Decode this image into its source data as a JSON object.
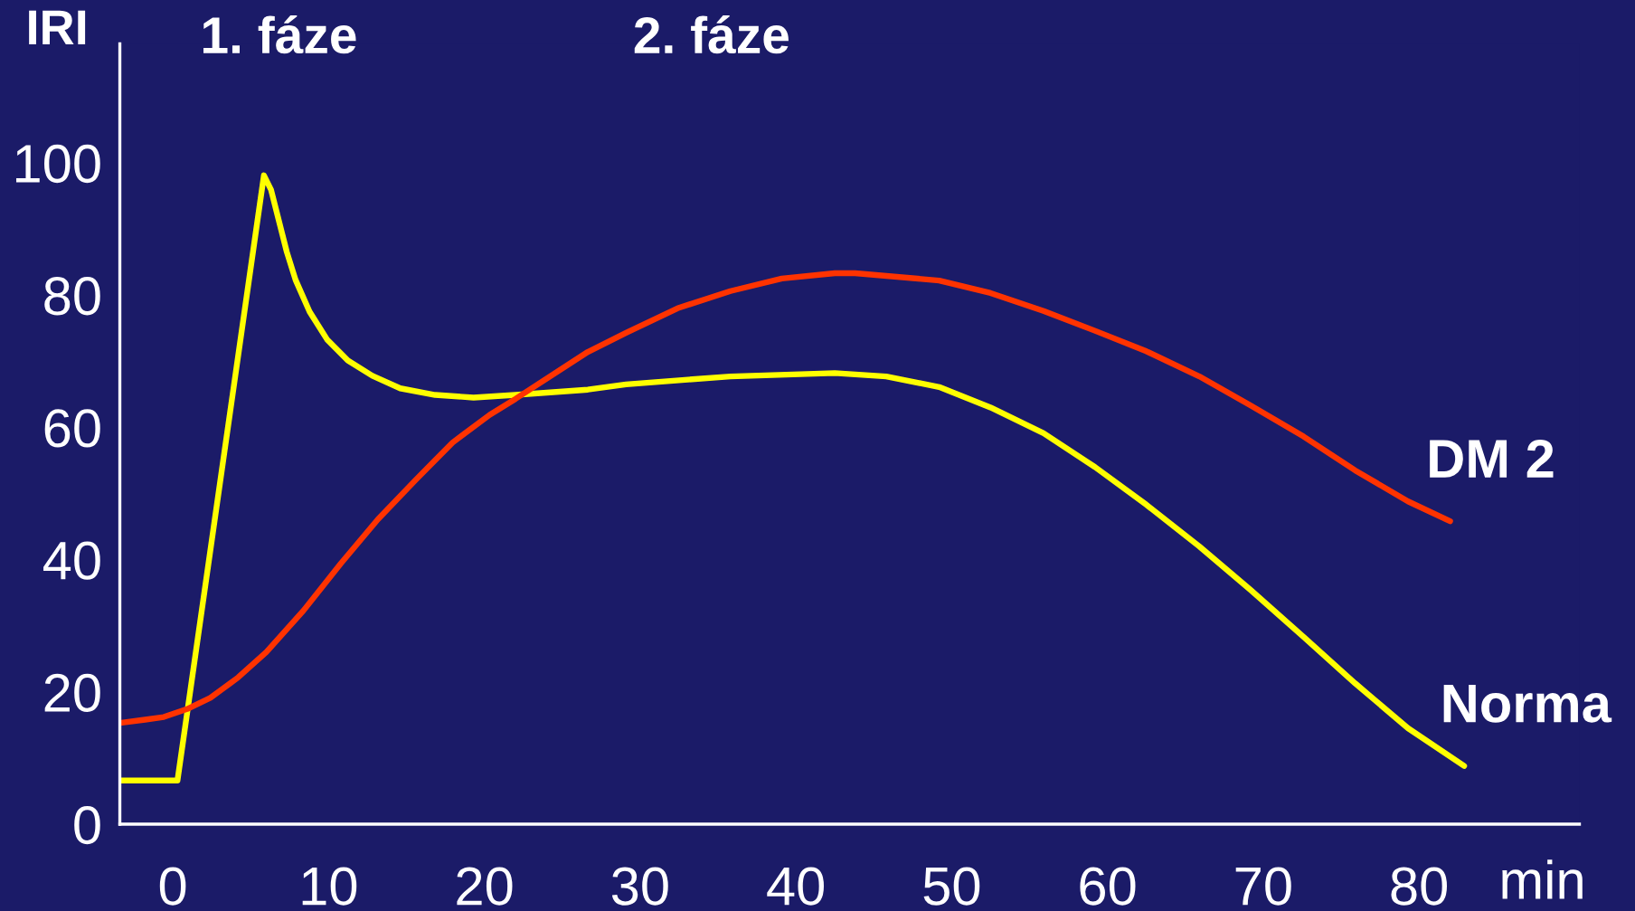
{
  "chart_data": {
    "type": "line",
    "xlabel": "min",
    "ylabel": "IRI",
    "annotations": [
      "1. fáze",
      "2. fáze"
    ],
    "xlim": [
      -3.4,
      90.3
    ],
    "ylim": [
      0,
      118
    ],
    "xticks": [
      0,
      10,
      20,
      30,
      40,
      50,
      60,
      70,
      80
    ],
    "yticks": [
      0,
      20,
      40,
      60,
      80,
      100
    ],
    "grid": false,
    "legend": false,
    "marker": "none",
    "line_style": "solid",
    "series": [
      {
        "name": "Norma",
        "color": "#ffff00",
        "x": [
          -3.4,
          0.3,
          5.85,
          6.31,
          6.76,
          7.32,
          7.88,
          8.78,
          9.9,
          11.24,
          12.81,
          14.6,
          16.84,
          19.31,
          22.0,
          26.64,
          29.1,
          35.8,
          42.5,
          45.8,
          49.2,
          52.5,
          55.9,
          59.2,
          62.5,
          65.9,
          69.2,
          72.6,
          75.9,
          79.3,
          82.9
        ],
        "values": [
          6.6,
          6.6,
          98.1,
          95.9,
          91.7,
          86.5,
          82.3,
          77.5,
          73.3,
          70.1,
          67.8,
          65.9,
          64.9,
          64.5,
          64.9,
          65.7,
          66.5,
          67.7,
          68.2,
          67.7,
          66.1,
          63.0,
          59.1,
          54.0,
          48.3,
          42.0,
          35.4,
          28.3,
          21.3,
          14.5,
          8.8
        ]
      },
      {
        "name": "DM 2",
        "color": "#ff3300",
        "x": [
          -3.4,
          -1.78,
          -0.58,
          0.91,
          2.41,
          4.2,
          6.0,
          8.39,
          10.78,
          13.17,
          15.57,
          17.96,
          20.35,
          22.0,
          26.64,
          29.1,
          32.4,
          35.8,
          39.1,
          42.5,
          43.8,
          49.2,
          52.5,
          55.9,
          59.2,
          62.5,
          65.9,
          69.2,
          72.6,
          75.9,
          79.3,
          82.0
        ],
        "values": [
          15.3,
          15.8,
          16.2,
          17.4,
          19.1,
          22.2,
          26.0,
          32.3,
          39.4,
          46.1,
          52.0,
          57.7,
          61.9,
          64.3,
          71.4,
          74.3,
          78.0,
          80.6,
          82.5,
          83.3,
          83.3,
          82.2,
          80.3,
          77.6,
          74.6,
          71.5,
          67.7,
          63.3,
          58.6,
          53.5,
          48.8,
          45.8
        ]
      }
    ]
  }
}
